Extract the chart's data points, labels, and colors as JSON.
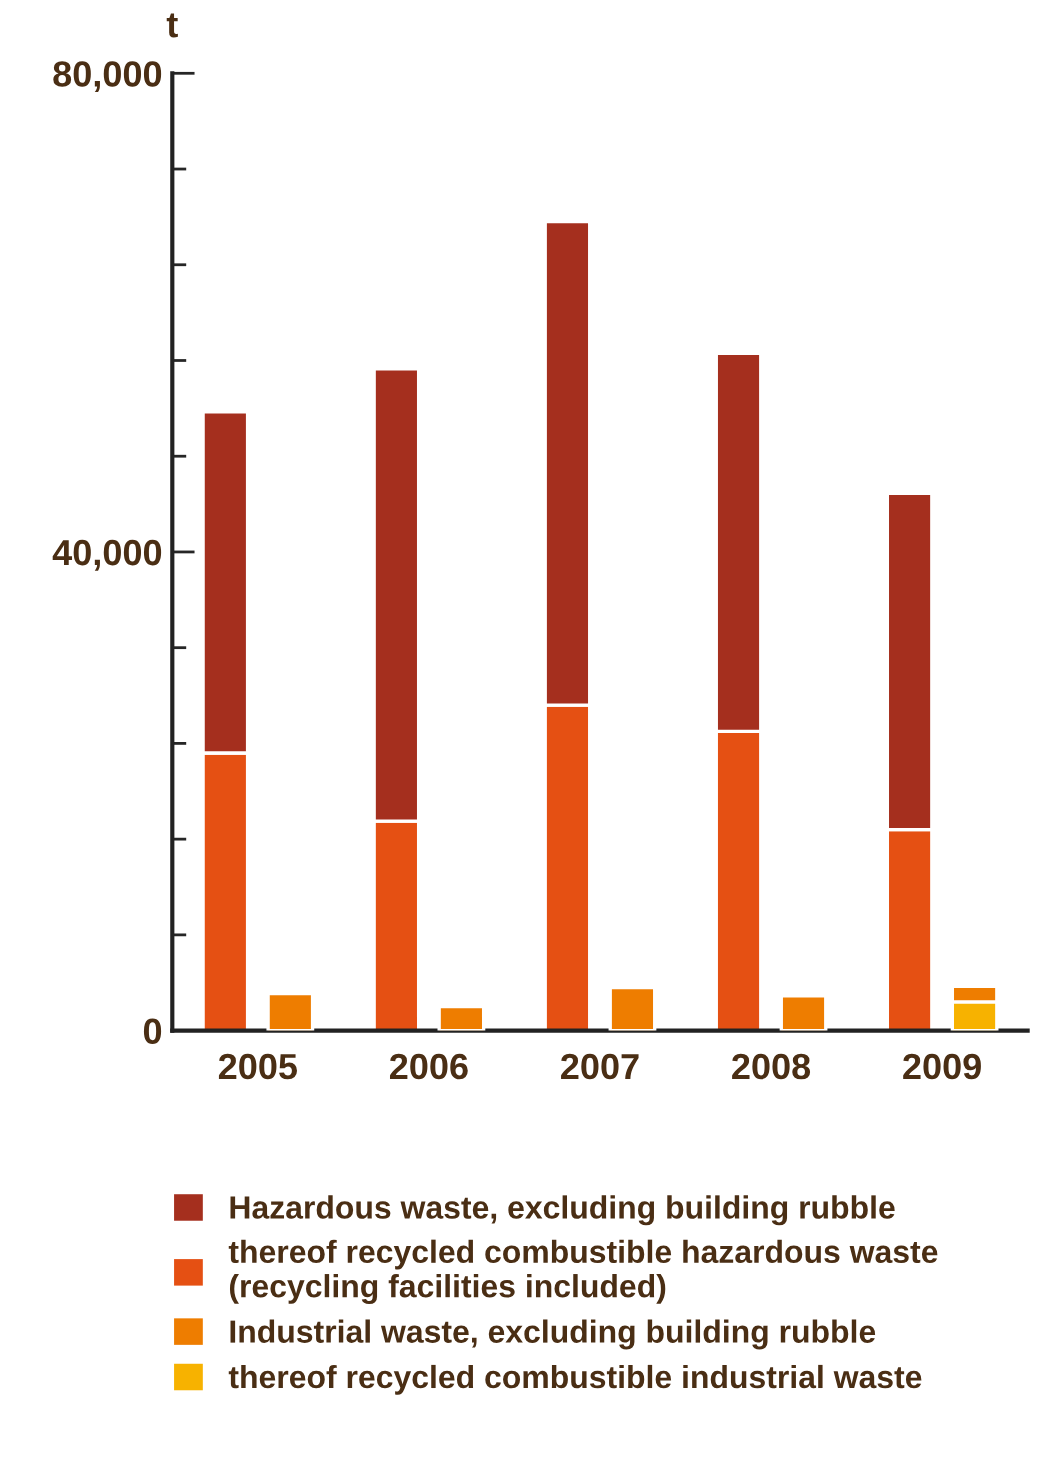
{
  "chart_data": [
    {
      "type": "bar",
      "stacked": true,
      "ylabel": "t",
      "categories": [
        "2005",
        "2006",
        "2007",
        "2008",
        "2009"
      ],
      "series": [
        {
          "name": "thereof recycled combustible hazardous waste\n(recycling facilities included)",
          "color": "#e55013",
          "values": [
            23200,
            17500,
            27200,
            25000,
            16800
          ]
        },
        {
          "name": "Hazardous waste, excluding building rubble",
          "color": "#a52f1e",
          "values": [
            28500,
            37800,
            40400,
            31600,
            28100
          ]
        }
      ],
      "ylim": [
        0,
        80000
      ],
      "yticks": [
        0,
        {
          "value": 8000,
          "label": null
        },
        {
          "value": 16000,
          "label": null
        },
        {
          "value": 24000,
          "label": null
        },
        {
          "value": 32000,
          "label": null
        },
        {
          "value": 40000,
          "label": "40,000"
        },
        {
          "value": 48000,
          "label": null
        },
        {
          "value": 56000,
          "label": null
        },
        {
          "value": 64000,
          "label": null
        },
        {
          "value": 72000,
          "label": null
        },
        {
          "value": 80000,
          "label": "80,000"
        }
      ],
      "legend": "bottom"
    },
    {
      "type": "bar",
      "stacked": true,
      "categories": [
        "2005",
        "2006",
        "2007",
        "2008",
        "2009"
      ],
      "series": [
        {
          "name": "thereof recycled combustible industrial waste",
          "color": "#f7b200",
          "values": [
            null,
            null,
            null,
            null,
            2400
          ]
        },
        {
          "name": "Industrial waste, excluding building rubble",
          "color": "#ee7d00",
          "values": [
            3100,
            2000,
            3600,
            2900,
            1300
          ]
        }
      ],
      "ylim": [
        0,
        80000
      ],
      "tick_labels": false,
      "legend": "bottom"
    }
  ]
}
